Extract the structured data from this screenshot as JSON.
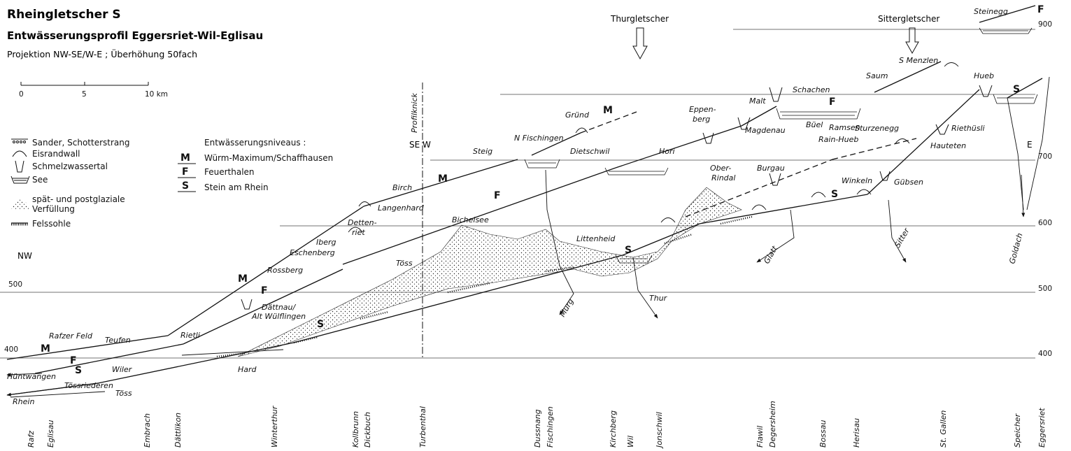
{
  "header": {
    "title": "Rheingletscher S",
    "subtitle": "Entwässerungsprofil Eggersriet-Wil-Eglisau",
    "projection": "Projektion NW-SE/W-E ; Überhöhung 50fach"
  },
  "scale": {
    "labels": [
      "0",
      "5",
      "10 km"
    ]
  },
  "legend": {
    "sander": "Sander, Schotterstrang",
    "eisrandwall": "Eisrandwall",
    "schmelzwassertal": "Schmelzwassertal",
    "see": "See",
    "verfuellung_1": "spät- und postglaziale",
    "verfuellung_2": "Verfüllung",
    "felssohle": "Felssohle",
    "niveaus_title": "Entwässerungsniveaus :",
    "levels": [
      {
        "code": "M",
        "name": "Würm-Maximum/Schaffhausen"
      },
      {
        "code": "F",
        "name": "Feuerthalen"
      },
      {
        "code": "S",
        "name": "Stein am Rhein"
      }
    ]
  },
  "orientation": {
    "nw": "NW",
    "se_w": "SE  W",
    "e": "E",
    "profilknick": "Profilknick"
  },
  "glaciers": {
    "thur": "Thurgletscher",
    "sitter": "Sittergletscher"
  },
  "elevations": {
    "left": [
      "500",
      "400"
    ],
    "right": [
      "900",
      "700",
      "600",
      "500",
      "400"
    ]
  },
  "places": [
    "Steinegg",
    "S Menzlen",
    "Saum",
    "Hueb",
    "Schachen",
    "Malt",
    "Büel",
    "Ramsen",
    "Eppen-",
    "berg",
    "Magdenau",
    "Gründ",
    "N Fischingen",
    "Steig",
    "Dietschwil",
    "Hori",
    "Sturzenegg",
    "Rain-Hueb",
    "Riethüsli",
    "Hauteten",
    "Ober-",
    "Rindal",
    "Burgau",
    "Winkeln",
    "Gübsen",
    "Birch",
    "Langenhard",
    "Detten-",
    "riet",
    "Iberg",
    "Eschenberg",
    "Rossberg",
    "Bichelsee",
    "Littenheid",
    "Töss",
    "Dättnau/",
    "Alt Wülflingen",
    "Rafzer Feld",
    "Teufen",
    "Rietli",
    "Wiler",
    "Hüntwangen",
    "Tössriederen",
    "Hard",
    "Rhein",
    "Murg",
    "Thur",
    "Glatt",
    "Sitter",
    "Goldach"
  ],
  "towns": [
    "Rafz",
    "Eglisau",
    "Embrach",
    "Dättlikon",
    "Winterthur",
    "Kollbrunn",
    "Dickbuch",
    "Turbenthal",
    "Dussnang",
    "Fischingen",
    "Kirchberg",
    "Wil",
    "Jonschwil",
    "Flawil",
    "Degersheim",
    "Bossau",
    "Herisau",
    "St. Gallen",
    "Speicher",
    "Eggersriet"
  ]
}
